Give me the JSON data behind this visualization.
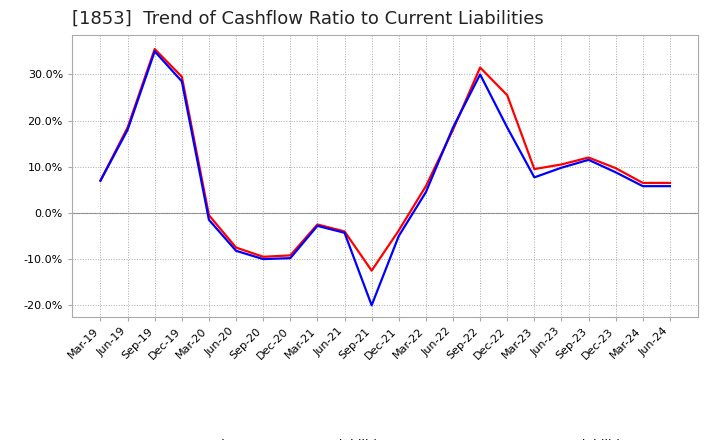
{
  "title": "[1853]  Trend of Cashflow Ratio to Current Liabilities",
  "legend_labels": [
    "Operating CF to Current Liabilities",
    "Free CF to Current Liabilities"
  ],
  "line_colors": [
    "#ff0000",
    "#0000ff"
  ],
  "x_labels": [
    "Mar-19",
    "Jun-19",
    "Sep-19",
    "Dec-19",
    "Mar-20",
    "Jun-20",
    "Sep-20",
    "Dec-20",
    "Mar-21",
    "Jun-21",
    "Sep-21",
    "Dec-21",
    "Mar-22",
    "Jun-22",
    "Sep-22",
    "Dec-22",
    "Mar-23",
    "Jun-23",
    "Sep-23",
    "Dec-23",
    "Mar-24",
    "Jun-24"
  ],
  "operating_cf": [
    0.07,
    0.185,
    0.355,
    0.295,
    -0.005,
    -0.075,
    -0.095,
    -0.092,
    -0.025,
    -0.04,
    -0.125,
    -0.038,
    0.058,
    0.18,
    0.315,
    0.255,
    0.095,
    0.105,
    0.12,
    0.097,
    0.065,
    0.065
  ],
  "free_cf": [
    0.07,
    0.18,
    0.35,
    0.285,
    -0.015,
    -0.082,
    -0.1,
    -0.098,
    -0.028,
    -0.043,
    -0.2,
    -0.05,
    0.045,
    0.185,
    0.3,
    0.185,
    0.077,
    0.098,
    0.115,
    0.088,
    0.058,
    0.058
  ],
  "ylim": [
    -0.225,
    0.385
  ],
  "yticks": [
    -0.2,
    -0.1,
    0.0,
    0.1,
    0.2,
    0.3
  ],
  "background_color": "#ffffff",
  "grid_color": "#aaaaaa",
  "title_fontsize": 13,
  "label_fontsize": 9,
  "tick_fontsize": 8
}
